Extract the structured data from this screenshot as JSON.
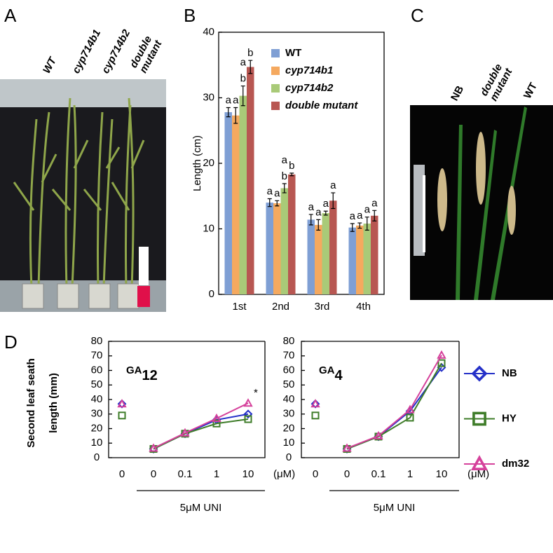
{
  "panels": {
    "A": {
      "letter": "A",
      "labels": [
        "WT",
        "cyp714b1",
        "cyp714b2",
        "double mutant"
      ]
    },
    "C": {
      "letter": "C",
      "labels": [
        "NB",
        "double mutant",
        "WT"
      ]
    }
  },
  "chart_data": [
    {
      "type": "bar",
      "panel": "B",
      "y_label": "Length (cm)",
      "categories": [
        "1st",
        "2nd",
        "3rd",
        "4th"
      ],
      "ylim": [
        0,
        40
      ],
      "yticks": [
        0,
        10,
        20,
        30,
        40
      ],
      "series": [
        {
          "name": "WT",
          "color": "#7f9fd4",
          "italic": false,
          "values": [
            27.8,
            14.0,
            11.4,
            10.2
          ],
          "errors": [
            0.7,
            0.6,
            0.8,
            0.6
          ],
          "letters": [
            [
              "a"
            ],
            [
              "a"
            ],
            [
              "a"
            ],
            [
              "a"
            ]
          ]
        },
        {
          "name": "cyp714b1",
          "color": "#f5a95f",
          "italic": true,
          "values": [
            27.3,
            13.9,
            10.6,
            10.5
          ],
          "errors": [
            1.2,
            0.4,
            0.8,
            0.4
          ],
          "letters": [
            [
              "a"
            ],
            [
              "a"
            ],
            [
              "a"
            ],
            [
              "a"
            ]
          ]
        },
        {
          "name": "cyp714b2",
          "color": "#a9ca78",
          "italic": true,
          "values": [
            30.3,
            16.2,
            12.4,
            10.8
          ],
          "errors": [
            1.5,
            0.7,
            0.3,
            1.0
          ],
          "letters": [
            [
              "a",
              "b"
            ],
            [
              "a",
              "b"
            ],
            [
              "a"
            ],
            [
              "a"
            ]
          ]
        },
        {
          "name": "double mutant",
          "color": "#b85752",
          "italic": true,
          "values": [
            34.7,
            18.3,
            14.3,
            12.0
          ],
          "errors": [
            1.0,
            0.2,
            1.2,
            0.8
          ],
          "letters": [
            [
              "b"
            ],
            [
              "b"
            ],
            [
              "a"
            ],
            [
              "a"
            ]
          ]
        }
      ]
    },
    {
      "type": "line",
      "panel": "D",
      "title": "GA",
      "title_sub": "12",
      "y_label": [
        "Second  leaf seath",
        "length (mm)"
      ],
      "control_label": "0",
      "categories": [
        "0",
        "0.1",
        "1",
        "10"
      ],
      "unit": "(μM)",
      "bracket_label": "5μM UNI",
      "ylim": [
        0,
        80
      ],
      "yticks": [
        0,
        10,
        20,
        30,
        40,
        50,
        60,
        70,
        80
      ],
      "series": [
        {
          "name": "NB",
          "color": "#2430c8",
          "marker": "diamond",
          "control": 37,
          "values": [
            6,
            16.5,
            26,
            30
          ]
        },
        {
          "name": "HY",
          "color": "#3f7d2a",
          "marker": "square",
          "control": 29,
          "values": [
            6,
            16.5,
            23.5,
            26.5
          ]
        },
        {
          "name": "dm32",
          "color": "#d5419b",
          "marker": "triangle",
          "control": 37,
          "values": [
            6.5,
            17,
            27,
            37.5
          ],
          "point_labels": [
            null,
            null,
            null,
            "*"
          ]
        }
      ]
    },
    {
      "type": "line",
      "title": "GA",
      "title_sub": "4",
      "control_label": "0",
      "categories": [
        "0",
        "0.1",
        "1",
        "10"
      ],
      "unit": "(μM)",
      "bracket_label": "5μM UNI",
      "ylim": [
        0,
        80
      ],
      "yticks": [
        0,
        10,
        20,
        30,
        40,
        50,
        60,
        70,
        80
      ],
      "series": [
        {
          "name": "NB",
          "color": "#2430c8",
          "marker": "diamond",
          "control": 37,
          "values": [
            6,
            14.5,
            32,
            62
          ]
        },
        {
          "name": "HY",
          "color": "#3f7d2a",
          "marker": "square",
          "control": 29,
          "values": [
            6,
            14.5,
            27.5,
            65
          ]
        },
        {
          "name": "dm32",
          "color": "#d5419b",
          "marker": "triangle",
          "control": 37,
          "values": [
            6.5,
            15,
            33,
            70.5
          ]
        }
      ]
    }
  ]
}
